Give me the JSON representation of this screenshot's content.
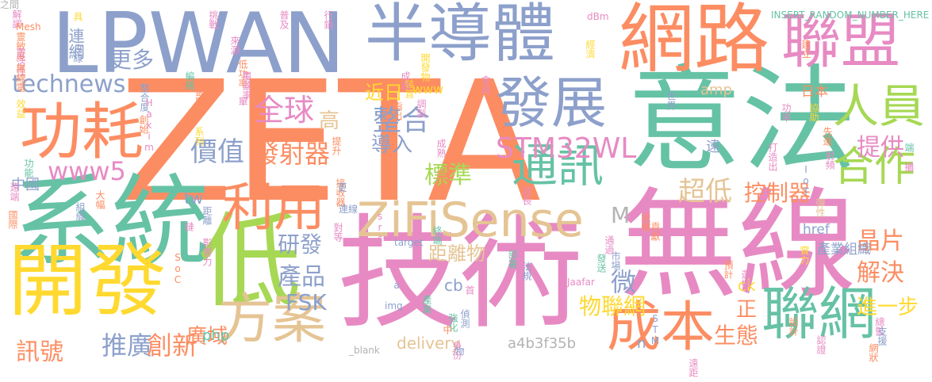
{
  "palette": {
    "orange": "#fc8d62",
    "teal": "#66c2a5",
    "blue": "#8da0cb",
    "pink": "#e78ac3",
    "green": "#a6d854",
    "yellow": "#ffd92f",
    "tan": "#e5c494",
    "gray": "#b3b3b3"
  },
  "words": [
    {
      "text": "ZETA",
      "color": "orange"
    },
    {
      "text": "技術",
      "color": "pink"
    },
    {
      "text": "無線",
      "color": "pink"
    },
    {
      "text": "意法",
      "color": "teal"
    },
    {
      "text": "系統",
      "color": "teal"
    },
    {
      "text": "LPWAN",
      "color": "blue"
    },
    {
      "text": "網路",
      "color": "orange"
    },
    {
      "text": "半導體",
      "color": "blue"
    },
    {
      "text": "低",
      "color": "green"
    },
    {
      "text": "開發",
      "color": "yellow"
    },
    {
      "text": "聯盟",
      "color": "pink"
    },
    {
      "text": "ZiFiSense",
      "color": "tan"
    },
    {
      "text": "功耗",
      "color": "orange"
    },
    {
      "text": "發展",
      "color": "blue"
    },
    {
      "text": "利用",
      "color": "orange"
    },
    {
      "text": "成本",
      "color": "orange"
    },
    {
      "text": "聯網",
      "color": "teal"
    },
    {
      "text": "方案",
      "color": "tan"
    },
    {
      "text": "通訊",
      "color": "teal"
    },
    {
      "text": "人員",
      "color": "green"
    },
    {
      "text": "合作",
      "color": "green"
    },
    {
      "text": "全球",
      "color": "pink"
    },
    {
      "text": "整合",
      "color": "blue"
    },
    {
      "text": "STM32WL",
      "color": "pink"
    },
    {
      "text": "technews",
      "color": "blue"
    },
    {
      "text": "www5",
      "color": "pink"
    },
    {
      "text": "價值",
      "color": "blue"
    },
    {
      "text": "發射器",
      "color": "orange"
    },
    {
      "text": "更多",
      "color": "blue"
    },
    {
      "text": "高",
      "color": "tan"
    },
    {
      "text": "導入",
      "color": "blue"
    },
    {
      "text": "標準",
      "color": "green"
    },
    {
      "text": "提供",
      "color": "pink"
    },
    {
      "text": "晶片",
      "color": "orange"
    },
    {
      "text": "解決",
      "color": "orange"
    },
    {
      "text": "研發",
      "color": "blue"
    },
    {
      "text": "產品",
      "color": "blue"
    },
    {
      "text": "FSK",
      "color": "blue"
    },
    {
      "text": "超低",
      "color": "tan"
    },
    {
      "text": "控制器",
      "color": "orange"
    },
    {
      "text": "微",
      "color": "blue"
    },
    {
      "text": "物聯網",
      "color": "yellow"
    },
    {
      "text": "進一步",
      "color": "yellow"
    },
    {
      "text": "推廣",
      "color": "blue"
    },
    {
      "text": "創新",
      "color": "orange"
    },
    {
      "text": "訊號",
      "color": "orange"
    },
    {
      "text": "生態",
      "color": "orange"
    },
    {
      "text": "正",
      "color": "orange"
    },
    {
      "text": "廣域",
      "color": "orange"
    },
    {
      "text": "delivery",
      "color": "tan"
    },
    {
      "text": "a4b3f35b",
      "color": "gray"
    },
    {
      "text": "M",
      "color": "gray"
    },
    {
      "text": "距離物",
      "color": "tan"
    },
    {
      "text": "近日",
      "color": "yellow"
    },
    {
      "text": "www",
      "color": "yellow"
    },
    {
      "text": "amp",
      "color": "tan"
    },
    {
      "text": "日本",
      "color": "orange"
    },
    {
      "text": "中國",
      "color": "blue"
    },
    {
      "text": "tw",
      "color": "blue"
    },
    {
      "text": "php",
      "color": "teal"
    },
    {
      "text": "href",
      "color": "blue"
    },
    {
      "text": "產業組織",
      "color": "blue"
    },
    {
      "text": "ck",
      "color": "yellow"
    },
    {
      "text": "cb",
      "color": "blue"
    },
    {
      "text": "n",
      "color": "blue"
    },
    {
      "text": "遠",
      "color": "blue"
    },
    {
      "text": "連網",
      "color": "blue"
    },
    {
      "text": "具",
      "color": "yellow"
    },
    {
      "text": "解調",
      "color": "pink"
    },
    {
      "text": "靈敏度",
      "color": "orange"
    },
    {
      "text": "靈活性",
      "color": "pink"
    },
    {
      "text": "無線電",
      "color": "orange"
    },
    {
      "text": "占線",
      "color": "blue"
    },
    {
      "text": "效益",
      "color": "yellow"
    },
    {
      "text": "編碼",
      "color": "teal"
    },
    {
      "text": "整合度",
      "color": "blue"
    },
    {
      "text": "節點",
      "color": "orange"
    },
    {
      "text": "挑戰",
      "color": "pink"
    },
    {
      "text": "普及",
      "color": "pink"
    },
    {
      "text": "行銷",
      "color": "pink"
    },
    {
      "text": "來源",
      "color": "pink"
    },
    {
      "text": "低功率",
      "color": "orange"
    },
    {
      "text": "覆蓋率",
      "color": "pink"
    },
    {
      "text": "dBm",
      "color": "pink"
    },
    {
      "text": "經濟",
      "color": "yellow"
    },
    {
      "text": "INSERT_RANDOM_NUMBER_HERE",
      "color": "teal"
    },
    {
      "text": "Mesh",
      "color": "orange"
    },
    {
      "text": "開發物",
      "color": "yellow"
    },
    {
      "text": "裝置",
      "color": "yellow"
    },
    {
      "text": "成員",
      "color": "pink"
    },
    {
      "text": "指出",
      "color": "orange"
    },
    {
      "text": "調製",
      "color": "pink"
    },
    {
      "text": "世界",
      "color": "blue"
    },
    {
      "text": "協助",
      "color": "yellow"
    },
    {
      "text": "Hakim",
      "color": "pink"
    },
    {
      "text": "創始",
      "color": "orange"
    },
    {
      "text": "系列",
      "color": "yellow"
    },
    {
      "text": "功能",
      "color": "teal"
    },
    {
      "text": "遠端",
      "color": "pink"
    },
    {
      "text": "大幅",
      "color": "orange"
    },
    {
      "text": "組織",
      "color": "blue"
    },
    {
      "text": "國際",
      "color": "orange"
    },
    {
      "text": "距離",
      "color": "blue"
    },
    {
      "text": "影響力",
      "color": "pink"
    },
    {
      "text": "SoC",
      "color": "orange"
    },
    {
      "text": "img",
      "color": "blue"
    },
    {
      "text": "src",
      "color": "pink"
    },
    {
      "text": "target",
      "color": "blue"
    },
    {
      "text": "_blank",
      "color": "gray"
    },
    {
      "text": "Jaafar",
      "color": "pink"
    },
    {
      "text": "STM",
      "color": "blue"
    },
    {
      "text": "接收器",
      "color": "orange"
    },
    {
      "text": "成熟",
      "color": "pink"
    },
    {
      "text": "發送",
      "color": "teal"
    },
    {
      "text": "設備",
      "color": "orange"
    },
    {
      "text": "實力",
      "color": "yellow"
    },
    {
      "text": "預計",
      "color": "orange"
    },
    {
      "text": "選擇",
      "color": "pink"
    },
    {
      "text": "設計",
      "color": "orange"
    },
    {
      "text": "認證",
      "color": "pink"
    },
    {
      "text": "總監",
      "color": "pink"
    },
    {
      "text": "支援",
      "color": "blue"
    },
    {
      "text": "網狀",
      "color": "orange"
    },
    {
      "text": "遠距",
      "color": "pink"
    },
    {
      "text": "終端",
      "color": "teal"
    },
    {
      "text": "強化",
      "color": "teal"
    },
    {
      "text": "身份",
      "color": "pink"
    },
    {
      "text": "建立",
      "color": "orange"
    },
    {
      "text": "部署",
      "color": "teal"
    },
    {
      "text": "法規",
      "color": "blue"
    },
    {
      "text": "偵測",
      "color": "blue"
    },
    {
      "text": "超長",
      "color": "pink"
    },
    {
      "text": "市場",
      "color": "blue"
    },
    {
      "text": "通過",
      "color": "pink"
    },
    {
      "text": "先進",
      "color": "orange"
    },
    {
      "text": "功率",
      "color": "pink"
    },
    {
      "text": "射頻",
      "color": "pink"
    },
    {
      "text": "打造出",
      "color": "pink"
    },
    {
      "text": "IoT",
      "color": "blue"
    },
    {
      "text": "更",
      "color": "blue"
    },
    {
      "text": "提升",
      "color": "orange"
    },
    {
      "text": "彈性",
      "color": "tan"
    },
    {
      "text": "會員",
      "color": "pink"
    },
    {
      "text": "貢獻",
      "color": "orange"
    },
    {
      "text": "對等",
      "color": "pink"
    },
    {
      "text": "產業",
      "color": "teal"
    },
    {
      "text": "連線",
      "color": "blue"
    },
    {
      "text": "a",
      "color": "blue"
    },
    {
      "text": "中",
      "color": "orange"
    },
    {
      "text": "首",
      "color": "pink"
    },
    {
      "text": "物",
      "color": "blue"
    },
    {
      "text": "端",
      "color": "teal"
    },
    {
      "text": "攤",
      "color": "pink"
    },
    {
      "text": "鏈",
      "color": "pink"
    },
    {
      "text": "圖",
      "color": "orange"
    },
    {
      "text": "單",
      "color": "pink"
    },
    {
      "text": "之間",
      "color": "gray"
    }
  ]
}
